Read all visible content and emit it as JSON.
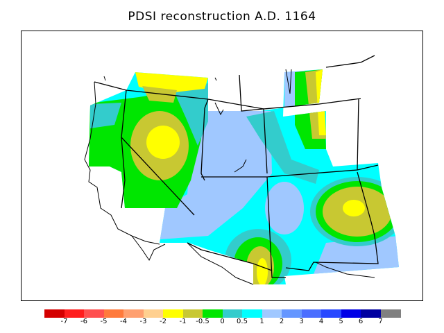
{
  "title": "PDSI reconstruction A.D. 1164",
  "legend": {
    "labels": [
      "-7",
      "-6",
      "-5",
      "-4",
      "-3",
      "-2",
      "-1",
      "-0.5",
      "0",
      "0.5",
      "1",
      "2",
      "3",
      "4",
      "5",
      "6",
      "7"
    ],
    "colors": [
      "#d40000",
      "#ff1e1e",
      "#ff5050",
      "#ff7a3c",
      "#ffa070",
      "#ffd090",
      "#ffff00",
      "#c8c832",
      "#00e600",
      "#33cccc",
      "#00ffff",
      "#a0c8ff",
      "#6496ff",
      "#4a6eff",
      "#2848ff",
      "#0000e6",
      "#0000a0",
      "#808080"
    ]
  },
  "map": {
    "region": "Western United States",
    "field_colors": {
      "dry_moderate": "#c8c832",
      "dry_mild": "#ffff00",
      "near_normal_dry": "#00e600",
      "near_normal": "#33cccc",
      "near_normal_wet": "#00ffff",
      "wet_mild": "#a0c8ff"
    }
  }
}
